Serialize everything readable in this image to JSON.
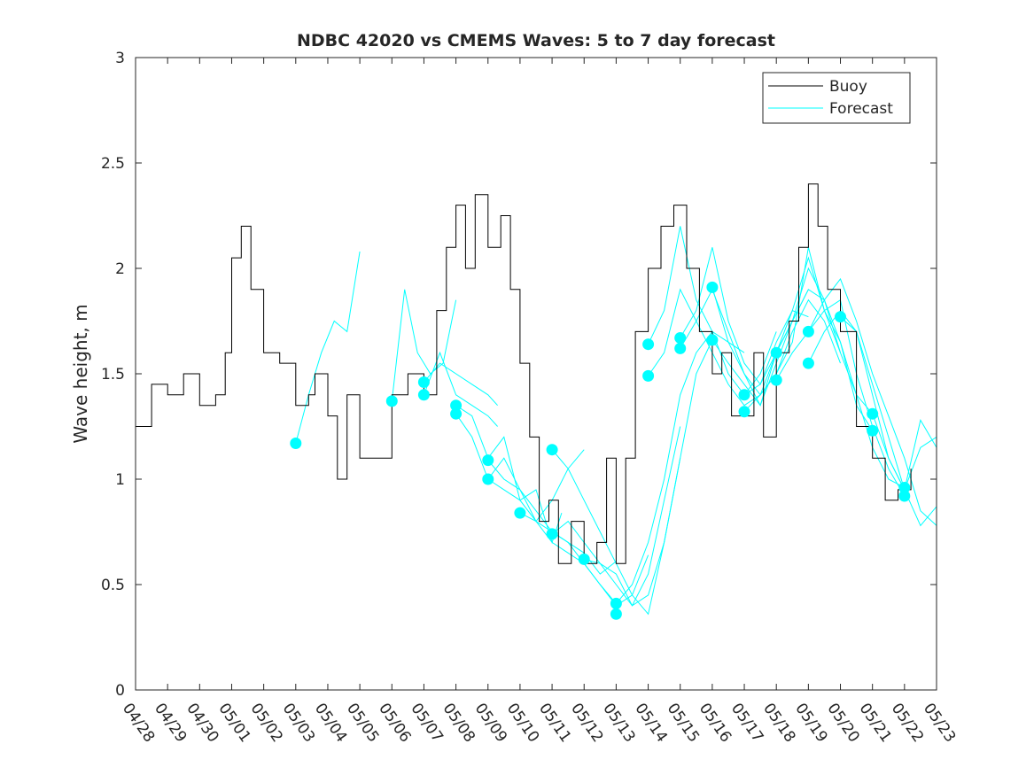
{
  "chart_data": {
    "type": "line",
    "title": "NDBC 42020 vs CMEMS Waves: 5 to 7 day forecast",
    "xlabel": "",
    "ylabel": "Wave height, m",
    "ylim": [
      0,
      3
    ],
    "yticks": [
      0,
      0.5,
      1,
      1.5,
      2,
      2.5,
      3
    ],
    "ytick_labels": [
      "0",
      "0.5",
      "1",
      "1.5",
      "2",
      "2.5",
      "3"
    ],
    "xlim_days": [
      0,
      25
    ],
    "xtick_labels": [
      "04/28",
      "04/29",
      "04/30",
      "05/01",
      "05/02",
      "05/03",
      "05/04",
      "05/05",
      "05/06",
      "05/07",
      "05/08",
      "05/09",
      "05/10",
      "05/11",
      "05/12",
      "05/13",
      "05/14",
      "05/15",
      "05/16",
      "05/17",
      "05/18",
      "05/19",
      "05/20",
      "05/21",
      "05/22",
      "05/23"
    ],
    "legend": {
      "position": "top-right",
      "entries": [
        "Buoy",
        "Forecast"
      ]
    },
    "colors": {
      "buoy": "#000000",
      "forecast": "#00ffff",
      "axis": "#262626"
    },
    "buoy": {
      "name": "Buoy",
      "x": [
        0,
        0.5,
        1,
        1.5,
        2,
        2.5,
        2.8,
        3,
        3.3,
        3.6,
        4,
        4.5,
        5,
        5.4,
        5.6,
        6,
        6.3,
        6.6,
        7,
        7.5,
        8,
        8.5,
        9,
        9.4,
        9.7,
        10,
        10.3,
        10.6,
        11,
        11.4,
        11.7,
        12,
        12.3,
        12.6,
        12.9,
        13.2,
        13.6,
        14,
        14.4,
        14.7,
        15,
        15.3,
        15.6,
        16,
        16.4,
        16.8,
        17.2,
        17.6,
        18,
        18.3,
        18.6,
        19,
        19.3,
        19.6,
        20,
        20.4,
        20.7,
        21,
        21.3,
        21.6,
        22,
        22.5,
        23,
        23.4,
        23.8,
        24.2
      ],
      "y": [
        1.25,
        1.45,
        1.4,
        1.5,
        1.35,
        1.4,
        1.6,
        2.05,
        2.2,
        1.9,
        1.6,
        1.55,
        1.35,
        1.4,
        1.5,
        1.3,
        1.0,
        1.4,
        1.1,
        1.1,
        1.4,
        1.5,
        1.4,
        1.8,
        2.1,
        2.3,
        2.0,
        2.35,
        2.1,
        2.25,
        1.9,
        1.55,
        1.2,
        0.8,
        0.9,
        0.6,
        0.8,
        0.6,
        0.7,
        1.1,
        0.6,
        1.1,
        1.7,
        2.0,
        2.2,
        2.3,
        2.0,
        1.7,
        1.5,
        1.6,
        1.3,
        1.3,
        1.6,
        1.2,
        1.6,
        1.75,
        2.1,
        2.4,
        2.2,
        1.9,
        1.7,
        1.25,
        1.1,
        0.9,
        0.95,
        1.05
      ]
    },
    "forecast": {
      "name": "Forecast",
      "runs": [
        {
          "x": [
            5,
            5.4,
            5.8,
            6.2,
            6.6,
            7
          ],
          "y": [
            1.17,
            1.4,
            1.6,
            1.75,
            1.7,
            2.08
          ]
        },
        {
          "x": [
            8,
            8.4,
            8.8,
            9.2,
            9.6,
            10
          ],
          "y": [
            1.37,
            1.9,
            1.6,
            1.5,
            1.55,
            1.85
          ]
        },
        {
          "x": [
            9,
            9.5,
            10,
            10.5,
            11,
            11.3
          ],
          "y": [
            1.46,
            1.55,
            1.5,
            1.45,
            1.4,
            1.35
          ]
        },
        {
          "x": [
            9,
            9.5,
            10,
            10.5,
            11,
            11.3
          ],
          "y": [
            1.4,
            1.6,
            1.4,
            1.35,
            1.3,
            1.25
          ]
        },
        {
          "x": [
            10,
            10.5,
            11,
            11.5,
            12,
            12.5,
            13,
            13.3
          ],
          "y": [
            1.35,
            1.3,
            1.1,
            1.2,
            0.9,
            0.95,
            0.7,
            0.84
          ]
        },
        {
          "x": [
            10,
            10.5,
            11,
            11.5,
            12,
            12.5,
            13,
            13.5,
            14
          ],
          "y": [
            1.31,
            1.2,
            1.0,
            1.1,
            0.95,
            0.8,
            0.9,
            1.05,
            1.14
          ]
        },
        {
          "x": [
            11,
            11.5,
            12,
            12.5,
            13,
            13.5,
            14,
            14.5,
            15
          ],
          "y": [
            1.09,
            1.0,
            0.95,
            0.85,
            0.75,
            0.7,
            0.65,
            0.55,
            0.61
          ]
        },
        {
          "x": [
            11,
            11.5,
            12,
            12.5,
            13,
            13.5,
            14,
            14.5,
            15
          ],
          "y": [
            1.0,
            0.95,
            0.9,
            0.8,
            0.7,
            0.65,
            0.6,
            0.5,
            0.41
          ]
        },
        {
          "x": [
            12,
            12.5,
            13,
            13.5,
            14,
            14.5,
            15,
            15.5,
            16
          ],
          "y": [
            0.84,
            0.8,
            0.75,
            0.7,
            0.6,
            0.5,
            0.4,
            0.45,
            0.64
          ]
        },
        {
          "x": [
            13,
            13.5,
            14,
            14.5,
            15,
            15.5,
            16,
            16.5,
            17
          ],
          "y": [
            1.14,
            1.05,
            0.9,
            0.75,
            0.6,
            0.45,
            0.36,
            0.7,
            1.1
          ]
        },
        {
          "x": [
            13,
            13.5,
            14,
            14.5,
            15,
            15.5,
            16,
            16.5,
            17
          ],
          "y": [
            0.74,
            0.8,
            0.7,
            0.6,
            0.5,
            0.4,
            0.55,
            0.9,
            1.25
          ]
        },
        {
          "x": [
            14,
            14.5,
            15,
            15.5,
            16,
            16.5,
            17,
            17.5,
            18
          ],
          "y": [
            0.62,
            0.6,
            0.55,
            0.4,
            0.45,
            0.7,
            1.1,
            1.5,
            1.66
          ]
        },
        {
          "x": [
            15,
            15.5,
            16,
            16.5,
            17,
            17.5,
            18,
            18.5,
            19
          ],
          "y": [
            0.41,
            0.5,
            0.7,
            1.0,
            1.4,
            1.6,
            1.7,
            1.65,
            1.6
          ]
        },
        {
          "x": [
            16,
            16.5,
            17,
            17.5,
            18,
            18.5,
            19,
            19.5,
            20
          ],
          "y": [
            1.49,
            1.6,
            1.9,
            1.75,
            1.6,
            1.45,
            1.35,
            1.4,
            1.6
          ]
        },
        {
          "x": [
            16,
            16.5,
            17,
            17.5,
            18,
            18.5,
            19,
            19.5,
            20
          ],
          "y": [
            1.64,
            1.8,
            2.2,
            1.85,
            1.7,
            1.5,
            1.4,
            1.5,
            1.7
          ]
        },
        {
          "x": [
            17,
            17.5,
            18,
            18.5,
            19,
            19.5,
            20,
            20.5,
            21
          ],
          "y": [
            1.62,
            1.75,
            1.9,
            1.7,
            1.5,
            1.35,
            1.55,
            1.75,
            1.9
          ]
        },
        {
          "x": [
            17,
            17.5,
            18,
            18.5,
            19,
            19.5,
            20,
            20.5,
            21
          ],
          "y": [
            1.67,
            1.8,
            2.1,
            1.75,
            1.55,
            1.45,
            1.65,
            1.8,
            1.77
          ]
        },
        {
          "x": [
            18,
            18.5,
            19,
            19.5,
            20,
            20.5,
            21,
            21.5,
            22
          ],
          "y": [
            1.91,
            1.65,
            1.5,
            1.4,
            1.5,
            1.7,
            1.85,
            1.75,
            1.55
          ]
        },
        {
          "x": [
            18,
            18.5,
            19,
            19.5,
            20,
            20.5,
            21,
            21.5,
            22
          ],
          "y": [
            1.66,
            1.55,
            1.45,
            1.35,
            1.6,
            1.8,
            2.05,
            1.8,
            1.6
          ]
        },
        {
          "x": [
            19,
            19.5,
            20,
            20.5,
            21,
            21.5,
            22,
            22.5,
            23
          ],
          "y": [
            1.4,
            1.45,
            1.6,
            1.75,
            2.0,
            1.85,
            1.6,
            1.4,
            1.31
          ]
        },
        {
          "x": [
            19,
            19.5,
            20,
            20.5,
            21,
            21.5,
            22,
            22.5,
            23
          ],
          "y": [
            1.32,
            1.4,
            1.5,
            1.65,
            2.1,
            1.8,
            1.65,
            1.35,
            1.23
          ]
        },
        {
          "x": [
            20,
            20.5,
            21,
            21.5,
            22,
            22.5,
            23,
            23.5,
            24
          ],
          "y": [
            1.6,
            1.75,
            1.9,
            1.85,
            1.65,
            1.4,
            1.15,
            1.0,
            0.96
          ]
        },
        {
          "x": [
            20,
            20.5,
            21,
            21.5,
            22,
            22.5,
            23,
            23.5,
            24
          ],
          "y": [
            1.47,
            1.6,
            1.7,
            1.8,
            1.85,
            1.5,
            1.25,
            1.05,
            0.92
          ]
        },
        {
          "x": [
            21,
            21.5,
            22,
            22.5,
            23,
            23.5,
            24,
            24.5,
            25
          ],
          "y": [
            1.55,
            1.7,
            1.8,
            1.7,
            1.45,
            1.2,
            0.95,
            0.78,
            0.87
          ]
        },
        {
          "x": [
            21,
            21.5,
            22,
            22.5,
            23,
            23.5,
            24,
            24.5,
            25
          ],
          "y": [
            1.7,
            1.85,
            1.95,
            1.75,
            1.5,
            1.3,
            1.1,
            0.85,
            0.78
          ]
        },
        {
          "x": [
            22,
            22.5,
            23,
            23.5,
            24,
            24.5,
            25
          ],
          "y": [
            1.77,
            1.7,
            1.4,
            1.1,
            0.95,
            1.15,
            1.2
          ]
        },
        {
          "x": [
            23,
            23.5,
            24,
            24.5,
            25
          ],
          "y": [
            1.31,
            1.1,
            0.95,
            1.28,
            1.15
          ]
        }
      ],
      "markers": {
        "x": [
          5,
          8,
          9,
          9,
          10,
          10,
          11,
          11,
          12,
          13,
          13,
          14,
          15,
          15,
          16,
          16,
          17,
          17,
          18,
          18,
          19,
          19,
          20,
          20,
          21,
          21,
          22,
          23,
          23,
          24,
          24
        ],
        "y": [
          1.17,
          1.37,
          1.46,
          1.4,
          1.35,
          1.31,
          1.09,
          1.0,
          0.84,
          1.14,
          0.74,
          0.62,
          0.41,
          0.36,
          1.64,
          1.49,
          1.67,
          1.62,
          1.91,
          1.66,
          1.4,
          1.32,
          1.6,
          1.47,
          1.7,
          1.55,
          1.77,
          1.31,
          1.23,
          0.96,
          0.92
        ]
      }
    }
  }
}
